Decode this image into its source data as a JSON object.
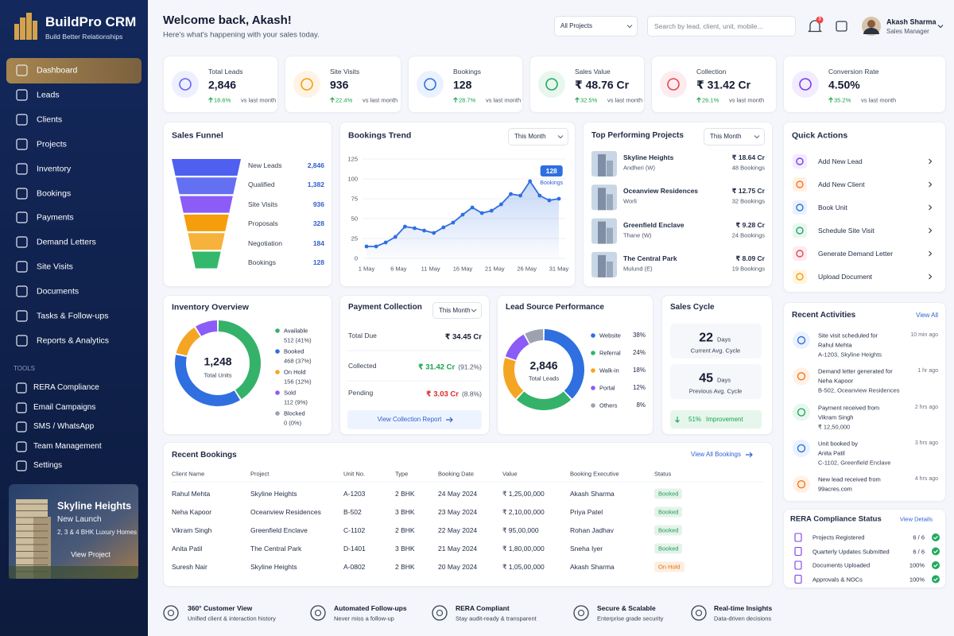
{
  "sidebar": {
    "brand": "BuildPro CRM",
    "tagline": "Build Better Relationships",
    "nav": [
      "Dashboard",
      "Leads",
      "Clients",
      "Projects",
      "Inventory",
      "Bookings",
      "Payments",
      "Demand Letters",
      "Site Visits",
      "Documents",
      "Tasks & Follow-ups",
      "Reports & Analytics"
    ],
    "tools_heading": "TOOLS",
    "tools": [
      "RERA Compliance",
      "Email Campaigns",
      "SMS / WhatsApp",
      "Team Management",
      "Settings"
    ],
    "promo": {
      "title": "Skyline Heights",
      "subtitle": "New Launch",
      "description": "2, 3 & 4 BHK Luxury Homes",
      "button": "View Project"
    }
  },
  "header": {
    "title": "Welcome back, Akash!",
    "subtitle": "Here's what's happening with your sales today.",
    "project_filter": "All Projects",
    "search_placeholder": "Search by lead, client, unit, mobile...",
    "notification_count": "3",
    "user": {
      "name": "Akash Sharma",
      "role": "Sales Manager"
    }
  },
  "kpis": [
    {
      "label": "Total Leads",
      "value": "2,846",
      "change": "18.6%",
      "period": "vs last month"
    },
    {
      "label": "Site Visits",
      "value": "936",
      "change": "22.4%",
      "period": "vs last month"
    },
    {
      "label": "Bookings",
      "value": "128",
      "change": "28.7%",
      "period": "vs last month"
    },
    {
      "label": "Sales Value",
      "value": "₹ 48.76 Cr",
      "change": "32.5%",
      "period": "vs last month"
    },
    {
      "label": "Collection",
      "value": "₹ 31.42 Cr",
      "change": "26.1%",
      "period": "vs last month"
    },
    {
      "label": "Conversion Rate",
      "value": "4.50%",
      "change": "35.2%",
      "period": "vs last month"
    }
  ],
  "sales_funnel": {
    "title": "Sales Funnel",
    "stages": [
      {
        "label": "New Leads",
        "value": "2,846"
      },
      {
        "label": "Qualified",
        "value": "1,382"
      },
      {
        "label": "Site Visits",
        "value": "936"
      },
      {
        "label": "Proposals",
        "value": "328"
      },
      {
        "label": "Negotiation",
        "value": "184"
      },
      {
        "label": "Bookings",
        "value": "128"
      }
    ]
  },
  "bookings_trend": {
    "type": "line",
    "title": "Bookings Trend",
    "filter": "This Month",
    "x": [
      1,
      2.5,
      4,
      5.5,
      7,
      8.5,
      10,
      11.5,
      13,
      14.5,
      16,
      17.5,
      19,
      20.5,
      22,
      23.5,
      25,
      26.5,
      28,
      29.5,
      31
    ],
    "values": [
      15,
      15,
      20,
      27,
      40,
      38,
      35,
      32,
      39,
      45,
      55,
      64,
      57,
      60,
      68,
      81,
      79,
      97,
      79,
      73,
      75
    ],
    "xlim": [
      1,
      31
    ],
    "xticks": [
      {
        "value": 1,
        "label": "1 May"
      },
      {
        "value": 6,
        "label": "6 May"
      },
      {
        "value": 11,
        "label": "11 May"
      },
      {
        "value": 16,
        "label": "16 May"
      },
      {
        "value": 21,
        "label": "21 May"
      },
      {
        "value": 26,
        "label": "26 May"
      },
      {
        "value": 31,
        "label": "31 May"
      }
    ],
    "ylim": [
      0,
      125
    ],
    "yticks": [
      0,
      25,
      50,
      75,
      100,
      125
    ],
    "grid": true,
    "color": "#2f6fe0",
    "callout": {
      "value": "128",
      "label": "Bookings"
    }
  },
  "top_projects": {
    "title": "Top Performing Projects",
    "filter": "This Month",
    "items": [
      {
        "name": "Skyline Heights",
        "location": "Andheri (W)",
        "value": "₹ 18.64 Cr",
        "bookings": "48 Bookings"
      },
      {
        "name": "Oceanview Residences",
        "location": "Worli",
        "value": "₹ 12.75 Cr",
        "bookings": "32 Bookings"
      },
      {
        "name": "Greenfield Enclave",
        "location": "Thane (W)",
        "value": "₹ 9.28 Cr",
        "bookings": "24 Bookings"
      },
      {
        "name": "The Central Park",
        "location": "Mulund (E)",
        "value": "₹ 8.09 Cr",
        "bookings": "19 Bookings"
      }
    ]
  },
  "quick_actions": {
    "title": "Quick Actions",
    "items": [
      "Add New Lead",
      "Add New Client",
      "Book Unit",
      "Schedule Site Visit",
      "Generate Demand Letter",
      "Upload Document"
    ]
  },
  "inventory_overview": {
    "type": "donut",
    "title": "Inventory Overview",
    "total": "1,248",
    "total_label": "Total Units",
    "categories": [
      "Available",
      "Booked",
      "On Hold",
      "Sold",
      "Blocked"
    ],
    "values": [
      512,
      468,
      156,
      112,
      0
    ],
    "value_labels": [
      "512 (41%)",
      "468 (37%)",
      "156 (12%)",
      "112 (9%)",
      "0 (0%)"
    ],
    "colors": [
      "#34b269",
      "#2f6fe0",
      "#f5a524",
      "#8b5cf6",
      "#9ca3af"
    ]
  },
  "payment_collection": {
    "title": "Payment Collection",
    "filter": "This Month",
    "rows": [
      {
        "label": "Total Due",
        "value": "₹ 34.45 Cr"
      },
      {
        "label": "Collected",
        "value": "₹ 31.42 Cr",
        "share": "(91.2%)"
      },
      {
        "label": "Pending",
        "value": "₹ 3.03 Cr",
        "share": "(8.8%)"
      }
    ],
    "button": "View Collection Report"
  },
  "lead_sources": {
    "type": "donut",
    "title": "Lead Source Performance",
    "total": "2,846",
    "total_label": "Total Leads",
    "categories": [
      "Website",
      "Referral",
      "Walk-in",
      "Portal",
      "Others"
    ],
    "values": [
      38,
      24,
      18,
      12,
      8
    ],
    "value_labels": [
      "38%",
      "24%",
      "18%",
      "12%",
      "8%"
    ],
    "colors": [
      "#2f6fe0",
      "#34b269",
      "#f5a524",
      "#8b5cf6",
      "#9ca3af"
    ]
  },
  "sales_cycle": {
    "title": "Sales Cycle",
    "current": {
      "value": "22",
      "unit": "Days",
      "label": "Current Avg. Cycle"
    },
    "previous": {
      "value": "45",
      "unit": "Days",
      "label": "Previous Avg. Cycle"
    },
    "improvement": "51%",
    "improvement_label": "Improvement"
  },
  "recent_activities": {
    "title": "Recent Activities",
    "link": "View All",
    "items": [
      {
        "text": "Site visit scheduled for",
        "subject": "Rahul Mehta",
        "detail": "A-1203, Skyline Heights",
        "time": "10 min ago"
      },
      {
        "text": "Demand letter generated for",
        "subject": "Neha Kapoor",
        "detail": "B-502, Oceanview Residences",
        "time": "1 hr ago"
      },
      {
        "text": "Payment received from",
        "subject": "Vikram Singh",
        "detail": "₹ 12,50,000",
        "time": "2 hrs ago"
      },
      {
        "text": "Unit booked by",
        "subject": "Anita Patil",
        "detail": "C-1102, Greenfield Enclave",
        "time": "3 hrs ago"
      },
      {
        "text": "New lead received from",
        "subject": "99acres.com",
        "time": "4 hrs ago"
      }
    ]
  },
  "recent_bookings": {
    "title": "Recent Bookings",
    "link": "View All Bookings",
    "columns": [
      "Client Name",
      "Project",
      "Unit No.",
      "Type",
      "Booking Date",
      "Value",
      "Booking Executive",
      "Status"
    ],
    "rows": [
      [
        "Rahul Mehta",
        "Skyline Heights",
        "A-1203",
        "2 BHK",
        "24 May 2024",
        "₹ 1,25,00,000",
        "Akash Sharma",
        "Booked"
      ],
      [
        "Neha Kapoor",
        "Oceanview Residences",
        "B-502",
        "3 BHK",
        "23 May 2024",
        "₹ 2,10,00,000",
        "Priya Patel",
        "Booked"
      ],
      [
        "Vikram Singh",
        "Greenfield Enclave",
        "C-1102",
        "2 BHK",
        "22 May 2024",
        "₹ 95,00,000",
        "Rohan Jadhav",
        "Booked"
      ],
      [
        "Anita Patil",
        "The Central Park",
        "D-1401",
        "3 BHK",
        "21 May 2024",
        "₹ 1,80,00,000",
        "Sneha Iyer",
        "Booked"
      ],
      [
        "Suresh Nair",
        "Skyline Heights",
        "A-0802",
        "2 BHK",
        "20 May 2024",
        "₹ 1,05,00,000",
        "Akash Sharma",
        "On Hold"
      ]
    ],
    "status_colors": [
      "#1f9d55",
      "#1f9d55",
      "#1f9d55",
      "#1f9d55",
      "#e8730c"
    ]
  },
  "rera_status": {
    "title": "RERA Compliance Status",
    "link": "View Details",
    "items": [
      {
        "label": "Projects Registered",
        "value": "6 / 6"
      },
      {
        "label": "Quarterly Updates Submitted",
        "value": "6 / 6"
      },
      {
        "label": "Documents Uploaded",
        "value": "100%"
      },
      {
        "label": "Approvals & NOCs",
        "value": "100%"
      }
    ]
  },
  "features": [
    {
      "title": "360° Customer View",
      "description": "Unified client & interaction history"
    },
    {
      "title": "Automated Follow-ups",
      "description": "Never miss a follow-up"
    },
    {
      "title": "RERA Compliant",
      "description": "Stay audit-ready & transparent"
    },
    {
      "title": "Secure & Scalable",
      "description": "Enterprise grade security"
    },
    {
      "title": "Real-time Insights",
      "description": "Data-driven decisions"
    }
  ]
}
